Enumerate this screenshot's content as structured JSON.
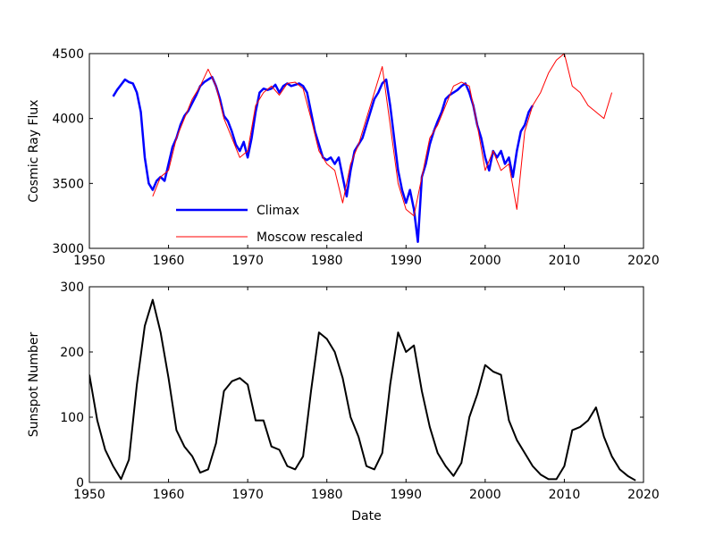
{
  "chart_data": [
    {
      "type": "line",
      "ylabel": "Cosmic Ray Flux",
      "xlim": [
        1950,
        2020
      ],
      "ylim": [
        3000,
        4500
      ],
      "xticks": [
        1950,
        1960,
        1970,
        1980,
        1990,
        2000,
        2010,
        2020
      ],
      "yticks": [
        3000,
        3500,
        4000,
        4500
      ],
      "legend": "lower left",
      "series": [
        {
          "name": "Climax",
          "color": "#0000ff",
          "x": [
            1953,
            1953.5,
            1954,
            1954.5,
            1955,
            1955.5,
            1956,
            1956.5,
            1957,
            1957.5,
            1958,
            1958.5,
            1959,
            1959.5,
            1960,
            1960.5,
            1961,
            1961.5,
            1962,
            1962.5,
            1963,
            1963.5,
            1964,
            1964.5,
            1965,
            1965.5,
            1966,
            1966.5,
            1967,
            1967.5,
            1968,
            1968.5,
            1969,
            1969.5,
            1970,
            1970.5,
            1971,
            1971.5,
            1972,
            1972.5,
            1973,
            1973.5,
            1974,
            1974.5,
            1975,
            1975.5,
            1976,
            1976.5,
            1977,
            1977.5,
            1978,
            1978.5,
            1979,
            1979.5,
            1980,
            1980.5,
            1981,
            1981.5,
            1982,
            1982.5,
            1983,
            1983.5,
            1984,
            1984.5,
            1985,
            1985.5,
            1986,
            1986.5,
            1987,
            1987.5,
            1988,
            1988.5,
            1989,
            1989.5,
            1990,
            1990.5,
            1991,
            1991.5,
            1992,
            1992.5,
            1993,
            1993.5,
            1994,
            1994.5,
            1995,
            1995.5,
            1996,
            1996.5,
            1997,
            1997.5,
            1998,
            1998.5,
            1999,
            1999.5,
            2000,
            2000.5,
            2001,
            2001.5,
            2002,
            2002.5,
            2003,
            2003.5,
            2004,
            2004.5,
            2005,
            2005.5,
            2006
          ],
          "values": [
            4170,
            4220,
            4260,
            4300,
            4280,
            4270,
            4200,
            4050,
            3700,
            3500,
            3450,
            3520,
            3550,
            3520,
            3650,
            3780,
            3850,
            3950,
            4020,
            4060,
            4120,
            4180,
            4250,
            4280,
            4300,
            4320,
            4250,
            4150,
            4020,
            3980,
            3900,
            3800,
            3750,
            3820,
            3700,
            3850,
            4050,
            4200,
            4230,
            4220,
            4230,
            4260,
            4200,
            4250,
            4270,
            4250,
            4260,
            4270,
            4250,
            4200,
            4050,
            3900,
            3800,
            3700,
            3680,
            3700,
            3650,
            3700,
            3550,
            3400,
            3600,
            3750,
            3800,
            3850,
            3950,
            4050,
            4150,
            4200,
            4270,
            4300,
            4100,
            3850,
            3600,
            3450,
            3350,
            3450,
            3300,
            3050,
            3550,
            3650,
            3800,
            3900,
            3980,
            4050,
            4150,
            4180,
            4200,
            4220,
            4250,
            4270,
            4200,
            4100,
            3950,
            3850,
            3700,
            3600,
            3750,
            3700,
            3750,
            3650,
            3700,
            3550,
            3750,
            3900,
            3950,
            4050,
            4100
          ]
        },
        {
          "name": "Moscow rescaled",
          "color": "#ff0000",
          "x": [
            1958,
            1959,
            1960,
            1961,
            1962,
            1963,
            1964,
            1965,
            1966,
            1967,
            1968,
            1969,
            1970,
            1971,
            1972,
            1973,
            1974,
            1975,
            1976,
            1977,
            1978,
            1979,
            1980,
            1981,
            1982,
            1983,
            1984,
            1985,
            1986,
            1987,
            1988,
            1989,
            1990,
            1991,
            1992,
            1993,
            1994,
            1995,
            1996,
            1997,
            1998,
            1999,
            2000,
            2001,
            2002,
            2003,
            2004,
            2005,
            2006,
            2007,
            2008,
            2009,
            2010,
            2011,
            2012,
            2013,
            2014,
            2015,
            2016
          ],
          "values": [
            3400,
            3550,
            3600,
            3850,
            4000,
            4150,
            4250,
            4380,
            4250,
            4000,
            3850,
            3700,
            3750,
            4100,
            4200,
            4250,
            4180,
            4270,
            4280,
            4230,
            4000,
            3750,
            3650,
            3600,
            3350,
            3650,
            3800,
            4000,
            4200,
            4400,
            3950,
            3500,
            3300,
            3250,
            3550,
            3850,
            3950,
            4100,
            4250,
            4280,
            4250,
            3950,
            3600,
            3750,
            3600,
            3650,
            3300,
            3900,
            4100,
            4200,
            4350,
            4450,
            4500,
            4250,
            4200,
            4100,
            4050,
            4000,
            4200
          ]
        }
      ]
    },
    {
      "type": "line",
      "ylabel": "Sunspot Number",
      "xlabel": "Date",
      "xlim": [
        1950,
        2020
      ],
      "ylim": [
        0,
        300
      ],
      "xticks": [
        1950,
        1960,
        1970,
        1980,
        1990,
        2000,
        2010,
        2020
      ],
      "yticks": [
        0,
        100,
        200,
        300
      ],
      "series": [
        {
          "color": "#000000",
          "x": [
            1950,
            1951,
            1952,
            1953,
            1954,
            1955,
            1956,
            1957,
            1958,
            1959,
            1960,
            1961,
            1962,
            1963,
            1964,
            1965,
            1966,
            1967,
            1968,
            1969,
            1970,
            1971,
            1972,
            1973,
            1974,
            1975,
            1976,
            1977,
            1978,
            1979,
            1980,
            1981,
            1982,
            1983,
            1984,
            1985,
            1986,
            1987,
            1988,
            1989,
            1990,
            1991,
            1992,
            1993,
            1994,
            1995,
            1996,
            1997,
            1998,
            1999,
            2000,
            2001,
            2002,
            2003,
            2004,
            2005,
            2006,
            2007,
            2008,
            2009,
            2010,
            2011,
            2012,
            2013,
            2014,
            2015,
            2016,
            2017,
            2018,
            2019
          ],
          "values": [
            165,
            95,
            50,
            25,
            5,
            35,
            150,
            240,
            280,
            230,
            160,
            80,
            55,
            40,
            15,
            20,
            60,
            140,
            155,
            160,
            150,
            95,
            95,
            55,
            50,
            25,
            20,
            40,
            140,
            230,
            220,
            200,
            160,
            100,
            70,
            25,
            20,
            45,
            150,
            230,
            200,
            210,
            140,
            85,
            45,
            25,
            10,
            30,
            100,
            135,
            180,
            170,
            165,
            95,
            65,
            45,
            25,
            12,
            5,
            5,
            25,
            80,
            85,
            95,
            115,
            70,
            40,
            20,
            10,
            3
          ]
        }
      ]
    }
  ]
}
